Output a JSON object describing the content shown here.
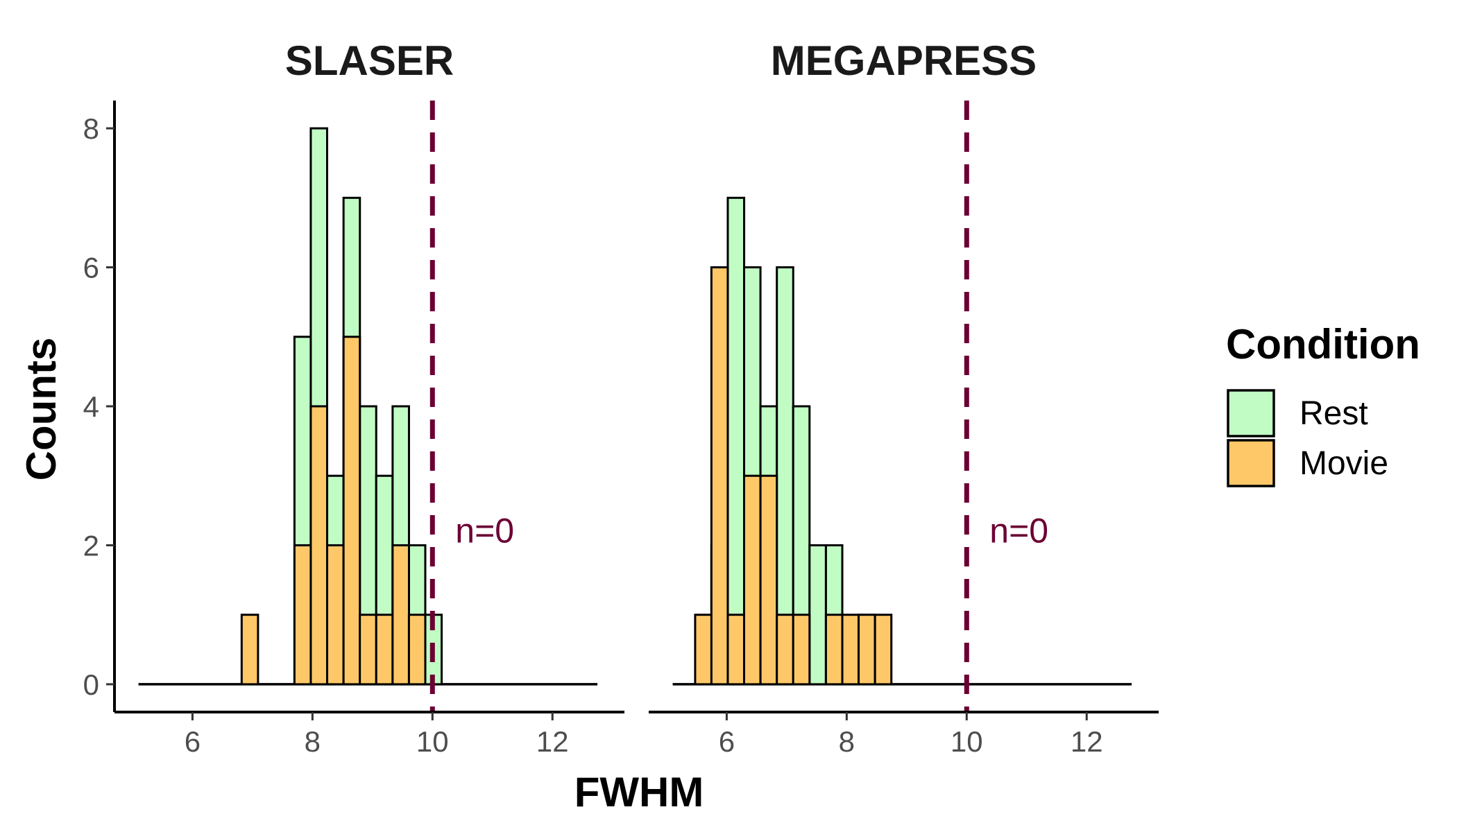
{
  "chart_data": {
    "type": "bar",
    "xlabel": "FWHM",
    "ylabel": "Counts",
    "xlim": [
      4.7,
      13.2
    ],
    "ylim": [
      -0.4,
      8.4
    ],
    "x_ticks": [
      6,
      8,
      10,
      12
    ],
    "y_ticks": [
      0,
      2,
      4,
      6,
      8
    ],
    "bin_width": 0.2727,
    "stacking": "overlaid",
    "threshold": 10,
    "threshold_color": "#6b0033",
    "legend": {
      "title": "Condition",
      "position": "right",
      "entries": [
        {
          "name": "Rest",
          "color": "#c1fcc4"
        },
        {
          "name": "Movie",
          "color": "#fec869"
        }
      ]
    },
    "panels": [
      {
        "title": "SLASER",
        "annotation": "n=0",
        "baseline_range": [
          5.1,
          12.75
        ],
        "series": [
          {
            "name": "Rest",
            "bins": [
              {
                "x": 7.7,
                "y": 5
              },
              {
                "x": 7.972,
                "y": 8
              },
              {
                "x": 8.245,
                "y": 3
              },
              {
                "x": 8.518,
                "y": 7
              },
              {
                "x": 8.79,
                "y": 4
              },
              {
                "x": 9.063,
                "y": 3
              },
              {
                "x": 9.336,
                "y": 4
              },
              {
                "x": 9.608,
                "y": 2
              },
              {
                "x": 9.881,
                "y": 1
              }
            ]
          },
          {
            "name": "Movie",
            "bins": [
              {
                "x": 6.82,
                "y": 1
              },
              {
                "x": 7.7,
                "y": 2
              },
              {
                "x": 7.972,
                "y": 4
              },
              {
                "x": 8.245,
                "y": 2
              },
              {
                "x": 8.518,
                "y": 5
              },
              {
                "x": 8.79,
                "y": 1
              },
              {
                "x": 9.063,
                "y": 1
              },
              {
                "x": 9.336,
                "y": 2
              },
              {
                "x": 9.608,
                "y": 1
              }
            ]
          }
        ]
      },
      {
        "title": "MEGAPRESS",
        "annotation": "n=0",
        "baseline_range": [
          5.1,
          12.75
        ],
        "series": [
          {
            "name": "Rest",
            "bins": [
              {
                "x": 5.745,
                "y": 2
              },
              {
                "x": 6.018,
                "y": 7
              },
              {
                "x": 6.29,
                "y": 6
              },
              {
                "x": 6.563,
                "y": 4
              },
              {
                "x": 6.836,
                "y": 6
              },
              {
                "x": 7.108,
                "y": 4
              },
              {
                "x": 7.381,
                "y": 2
              },
              {
                "x": 7.654,
                "y": 2
              },
              {
                "x": 8.199,
                "y": 1
              }
            ]
          },
          {
            "name": "Movie",
            "bins": [
              {
                "x": 5.474,
                "y": 1
              },
              {
                "x": 5.745,
                "y": 6
              },
              {
                "x": 6.018,
                "y": 1
              },
              {
                "x": 6.29,
                "y": 3
              },
              {
                "x": 6.563,
                "y": 3
              },
              {
                "x": 6.836,
                "y": 1
              },
              {
                "x": 7.108,
                "y": 1
              },
              {
                "x": 7.654,
                "y": 1
              },
              {
                "x": 7.927,
                "y": 1
              },
              {
                "x": 8.199,
                "y": 1
              },
              {
                "x": 8.472,
                "y": 1
              }
            ]
          }
        ]
      }
    ]
  }
}
